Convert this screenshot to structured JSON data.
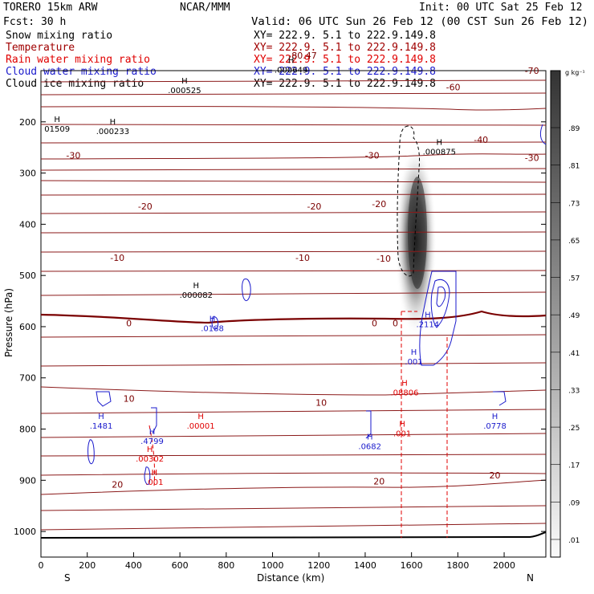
{
  "header": {
    "model": "TORERO  15km ARW",
    "org": "NCAR/MMM",
    "init": "Init: 00 UTC Sat 25 Feb 12",
    "fcst": "Fcst:   30 h",
    "valid": "Valid: 06 UTC Sun 26 Feb 12 (00 CST Sun 26 Feb 12)"
  },
  "fields": [
    {
      "name": "Snow mixing ratio",
      "xy": "XY= 222.9.  5.1 to 222.9.149.8",
      "color": "#000000"
    },
    {
      "name": "Temperature",
      "xy": "XY= 222.9.  5.1 to 222.9.149.8",
      "color": "#a00000"
    },
    {
      "name": "Rain water mixing ratio",
      "xy": "XY= 222.9.  5.1 to 222.9.149.8",
      "color": "#e00000"
    },
    {
      "name": "Cloud water mixing ratio",
      "xy": "XY= 222.9.  5.1 to 222.9.149.8",
      "color": "#1a1acc"
    },
    {
      "name": "Cloud ice mixing ratio",
      "xy": "XY= 222.9.  5.1 to 222.9.149.8",
      "color": "#000000"
    }
  ],
  "colorbar": {
    "unit": "g kg⁻¹",
    "labels": [
      ".89",
      ".81",
      ".73",
      ".65",
      ".57",
      ".49",
      ".41",
      ".33",
      ".25",
      ".17",
      ".09",
      ".01"
    ]
  },
  "chart_data": {
    "type": "cross-section",
    "xlabel": "Distance (km)",
    "ylabel": "Pressure (hPa)",
    "xlim": [
      0,
      2180
    ],
    "ylim": [
      1050,
      100
    ],
    "xticks": [
      0,
      200,
      400,
      600,
      800,
      1000,
      1200,
      1400,
      1600,
      1800,
      2000
    ],
    "yticks": [
      200,
      300,
      400,
      500,
      600,
      700,
      800,
      900,
      1000
    ],
    "x_end_labels": {
      "left": "S",
      "right": "N"
    },
    "temperature": {
      "isotherm_interval_C": 5,
      "labels": [
        {
          "x": 140,
          "p": 265,
          "text": "-30"
        },
        {
          "x": 1430,
          "p": 265,
          "text": "-30"
        },
        {
          "x": 2120,
          "p": 270,
          "text": "-30"
        },
        {
          "x": 450,
          "p": 365,
          "text": "-20"
        },
        {
          "x": 1180,
          "p": 365,
          "text": "-20"
        },
        {
          "x": 1460,
          "p": 360,
          "text": "-20"
        },
        {
          "x": 1900,
          "p": 235,
          "text": "-40"
        },
        {
          "x": 1780,
          "p": 132,
          "text": "-60"
        },
        {
          "x": 2120,
          "p": 100,
          "text": "-70"
        },
        {
          "x": 1480,
          "p": 467,
          "text": "-10"
        },
        {
          "x": 330,
          "p": 465,
          "text": "-10"
        },
        {
          "x": 1130,
          "p": 465,
          "text": "-10"
        },
        {
          "x": 380,
          "p": 593,
          "text": "0"
        },
        {
          "x": 1440,
          "p": 593,
          "text": "0"
        },
        {
          "x": 1530,
          "p": 593,
          "text": "0"
        },
        {
          "x": 380,
          "p": 740,
          "text": "10"
        },
        {
          "x": 1210,
          "p": 748,
          "text": "10"
        },
        {
          "x": 330,
          "p": 908,
          "text": "20"
        },
        {
          "x": 1460,
          "p": 902,
          "text": "20"
        },
        {
          "x": 1960,
          "p": 890,
          "text": "20"
        },
        {
          "x": 1130,
          "p": 70,
          "text": "-80.47"
        }
      ]
    },
    "maxima": [
      {
        "x": 620,
        "p": 125,
        "label": ".000525",
        "color": "#000000"
      },
      {
        "x": 70,
        "p": 200,
        "label": "01509",
        "color": "#000000"
      },
      {
        "x": 310,
        "p": 205,
        "label": ".000233",
        "color": "#000000"
      },
      {
        "x": 1720,
        "p": 245,
        "label": ".000875",
        "color": "#000000"
      },
      {
        "x": 1080,
        "p": 85,
        "label": ".000649",
        "color": "#000000"
      },
      {
        "x": 670,
        "p": 525,
        "label": ".000082",
        "color": "#000000"
      },
      {
        "x": 740,
        "p": 590,
        "label": ".0188",
        "color": "#1a1acc"
      },
      {
        "x": 1670,
        "p": 582,
        "label": ".2114",
        "color": "#1a1acc"
      },
      {
        "x": 1610,
        "p": 655,
        "label": ".001",
        "color": "#1a1acc"
      },
      {
        "x": 1570,
        "p": 715,
        "label": ".08806",
        "color": "#e00000"
      },
      {
        "x": 260,
        "p": 780,
        "label": ".1481",
        "color": "#1a1acc"
      },
      {
        "x": 480,
        "p": 810,
        "label": ".4799",
        "color": "#1a1acc"
      },
      {
        "x": 470,
        "p": 845,
        "label": ".00302",
        "color": "#e00000"
      },
      {
        "x": 690,
        "p": 780,
        "label": ".00001",
        "color": "#e00000"
      },
      {
        "x": 1420,
        "p": 820,
        "label": ".0682",
        "color": "#1a1acc"
      },
      {
        "x": 1960,
        "p": 780,
        "label": ".0778",
        "color": "#1a1acc"
      },
      {
        "x": 490,
        "p": 890,
        "label": ".001",
        "color": "#e00000"
      },
      {
        "x": 1560,
        "p": 795,
        "label": ".001",
        "color": "#e00000"
      }
    ]
  }
}
